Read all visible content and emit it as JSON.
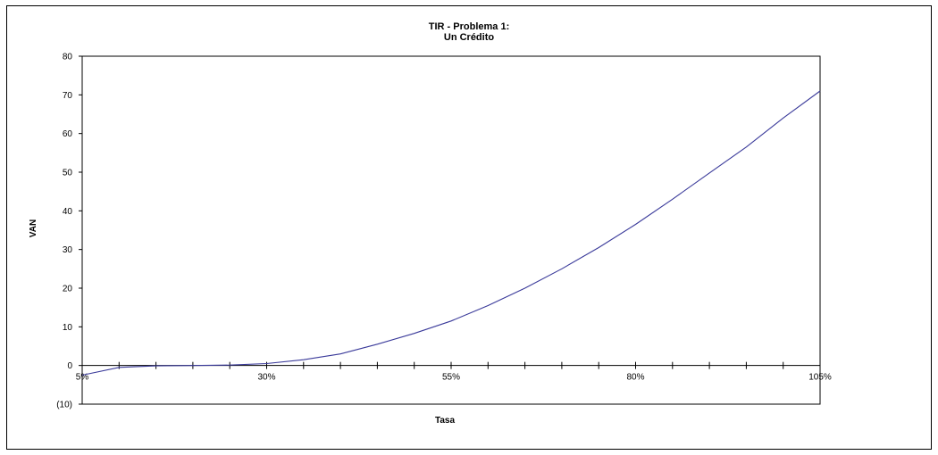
{
  "chart_data": {
    "type": "line",
    "title": "TIR - Problema 1:",
    "subtitle": "Un Crédito",
    "xlabel": "Tasa",
    "ylabel": "VAN",
    "ylim": [
      -10,
      80
    ],
    "yticks": [
      -10,
      0,
      10,
      20,
      30,
      40,
      50,
      60,
      70,
      80
    ],
    "ytick_labels": [
      "(10)",
      "0",
      "10",
      "20",
      "30",
      "40",
      "50",
      "60",
      "70",
      "80"
    ],
    "xlim": [
      5,
      105
    ],
    "xticks": [
      5,
      30,
      55,
      80,
      105
    ],
    "xtick_labels": [
      "5%",
      "30%",
      "55%",
      "80%",
      "105%"
    ],
    "x_minor_step": 5,
    "grid": false,
    "series": [
      {
        "color": "#3a3a9a",
        "x": [
          5,
          10,
          15,
          20,
          25,
          30,
          35,
          40,
          45,
          50,
          55,
          60,
          65,
          70,
          75,
          80,
          85,
          90,
          95,
          100,
          105
        ],
        "y": [
          -2.5,
          -0.5,
          -0.1,
          0,
          0.1,
          0.5,
          1.5,
          3.0,
          5.5,
          8.3,
          11.5,
          15.5,
          20.0,
          25.0,
          30.5,
          36.5,
          43.0,
          49.8,
          56.5,
          64.0,
          71.0
        ]
      }
    ]
  }
}
